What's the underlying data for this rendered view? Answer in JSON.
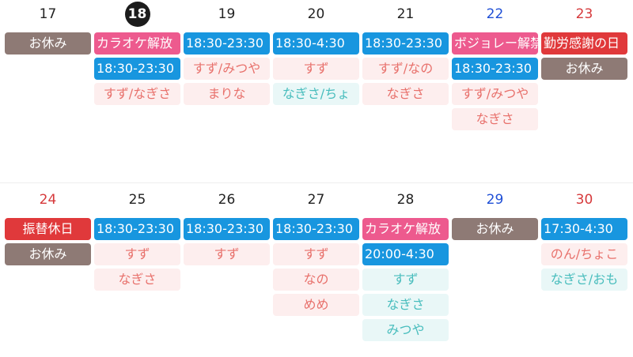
{
  "colors": {
    "sunday": "#d6393b",
    "saturday": "#1f4fd6",
    "weekday": "#222222",
    "today_bg": "#1c1c1c"
  },
  "weeks": [
    {
      "days": [
        {
          "date": "17",
          "kind": "weekday",
          "events": [
            {
              "text": "お休み",
              "type": "off"
            }
          ]
        },
        {
          "date": "18",
          "kind": "today",
          "events": [
            {
              "text": "カラオケ解放",
              "type": "event"
            },
            {
              "text": "18:30-23:30",
              "type": "time"
            },
            {
              "text": "すず/なぎさ",
              "type": "staff"
            }
          ]
        },
        {
          "date": "19",
          "kind": "weekday",
          "events": [
            {
              "text": "18:30-23:30",
              "type": "time"
            },
            {
              "text": "すず/みつや",
              "type": "staff"
            },
            {
              "text": "まりな",
              "type": "staff"
            }
          ]
        },
        {
          "date": "20",
          "kind": "weekday",
          "events": [
            {
              "text": "18:30-4:30",
              "type": "time"
            },
            {
              "text": "すず",
              "type": "staff"
            },
            {
              "text": "なぎさ/ちょ",
              "type": "staff2"
            }
          ]
        },
        {
          "date": "21",
          "kind": "weekday",
          "events": [
            {
              "text": "18:30-23:30",
              "type": "time"
            },
            {
              "text": "すず/なの",
              "type": "staff"
            },
            {
              "text": "なぎさ",
              "type": "staff"
            }
          ]
        },
        {
          "date": "22",
          "kind": "saturday",
          "events": [
            {
              "text": "ボジョレー解禁",
              "type": "event"
            },
            {
              "text": "18:30-23:30",
              "type": "time"
            },
            {
              "text": "すず/みつや",
              "type": "staff"
            },
            {
              "text": "なぎさ",
              "type": "staff"
            }
          ]
        },
        {
          "date": "23",
          "kind": "sunday",
          "events": [
            {
              "text": "勤労感謝の日",
              "type": "holiday"
            },
            {
              "text": "お休み",
              "type": "off"
            }
          ]
        }
      ]
    },
    {
      "days": [
        {
          "date": "24",
          "kind": "sunday",
          "events": [
            {
              "text": "振替休日",
              "type": "holiday_center"
            },
            {
              "text": "お休み",
              "type": "off"
            }
          ]
        },
        {
          "date": "25",
          "kind": "weekday",
          "events": [
            {
              "text": "18:30-23:30",
              "type": "time"
            },
            {
              "text": "すず",
              "type": "staff"
            },
            {
              "text": "なぎさ",
              "type": "staff"
            }
          ]
        },
        {
          "date": "26",
          "kind": "weekday",
          "events": [
            {
              "text": "18:30-23:30",
              "type": "time"
            },
            {
              "text": "すず",
              "type": "staff"
            }
          ]
        },
        {
          "date": "27",
          "kind": "weekday",
          "events": [
            {
              "text": "18:30-23:30",
              "type": "time"
            },
            {
              "text": "すず",
              "type": "staff"
            },
            {
              "text": "なの",
              "type": "staff"
            },
            {
              "text": "めめ",
              "type": "staff"
            }
          ]
        },
        {
          "date": "28",
          "kind": "weekday",
          "events": [
            {
              "text": "カラオケ解放",
              "type": "event"
            },
            {
              "text": "20:00-4:30",
              "type": "time"
            },
            {
              "text": "すず",
              "type": "staff2"
            },
            {
              "text": "なぎさ",
              "type": "staff2"
            },
            {
              "text": "みつや",
              "type": "staff2"
            }
          ]
        },
        {
          "date": "29",
          "kind": "saturday",
          "events": [
            {
              "text": "お休み",
              "type": "off"
            }
          ]
        },
        {
          "date": "30",
          "kind": "sunday",
          "events": [
            {
              "text": "17:30-4:30",
              "type": "time"
            },
            {
              "text": "のん/ちょこ",
              "type": "staff"
            },
            {
              "text": "なぎさ/おも",
              "type": "staff2"
            }
          ]
        }
      ]
    }
  ]
}
